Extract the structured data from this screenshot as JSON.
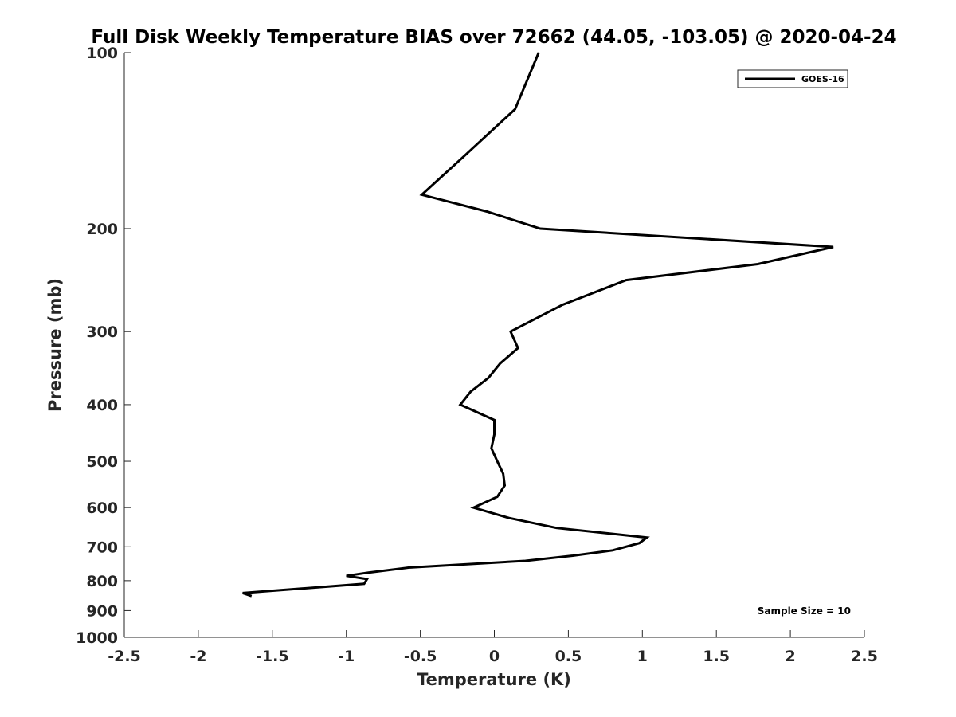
{
  "chart_data": {
    "type": "line",
    "title": "Full Disk Weekly Temperature BIAS over 72662 (44.05, -103.05) @ 2020-04-24",
    "xlabel": "Temperature (K)",
    "ylabel": "Pressure (mb)",
    "xlim": [
      -2.5,
      2.5
    ],
    "ylim": [
      100,
      1000
    ],
    "y_scale": "log",
    "y_reversed": true,
    "grid": false,
    "legend_position": "top-right",
    "x_ticks": [
      "-2.5",
      "-2",
      "-1.5",
      "-1",
      "-0.5",
      "0",
      "0.5",
      "1",
      "1.5",
      "2",
      "2.5"
    ],
    "y_ticks": [
      "100",
      "200",
      "300",
      "400",
      "500",
      "600",
      "700",
      "800",
      "900",
      "1000"
    ],
    "annotation": "Sample Size = 10",
    "series": [
      {
        "name": "GOES-16",
        "color": "#000000",
        "points": [
          {
            "t": 0.3,
            "p": 100
          },
          {
            "t": 0.14,
            "p": 125
          },
          {
            "t": -0.2,
            "p": 150
          },
          {
            "t": -0.49,
            "p": 175
          },
          {
            "t": -0.05,
            "p": 187
          },
          {
            "t": 0.31,
            "p": 200
          },
          {
            "t": 2.29,
            "p": 215
          },
          {
            "t": 1.78,
            "p": 230
          },
          {
            "t": 0.89,
            "p": 245
          },
          {
            "t": 0.46,
            "p": 270
          },
          {
            "t": 0.11,
            "p": 300
          },
          {
            "t": 0.16,
            "p": 320
          },
          {
            "t": 0.04,
            "p": 340
          },
          {
            "t": -0.04,
            "p": 360
          },
          {
            "t": -0.16,
            "p": 380
          },
          {
            "t": -0.23,
            "p": 400
          },
          {
            "t": 0.0,
            "p": 425
          },
          {
            "t": 0.0,
            "p": 450
          },
          {
            "t": -0.02,
            "p": 475
          },
          {
            "t": 0.02,
            "p": 500
          },
          {
            "t": 0.06,
            "p": 525
          },
          {
            "t": 0.07,
            "p": 550
          },
          {
            "t": 0.02,
            "p": 575
          },
          {
            "t": -0.14,
            "p": 600
          },
          {
            "t": 0.1,
            "p": 625
          },
          {
            "t": 0.42,
            "p": 650
          },
          {
            "t": 1.03,
            "p": 675
          },
          {
            "t": 0.98,
            "p": 690
          },
          {
            "t": 0.8,
            "p": 710
          },
          {
            "t": 0.53,
            "p": 725
          },
          {
            "t": 0.21,
            "p": 740
          },
          {
            "t": -0.58,
            "p": 760
          },
          {
            "t": -0.85,
            "p": 775
          },
          {
            "t": -1.0,
            "p": 785
          },
          {
            "t": -0.86,
            "p": 795
          },
          {
            "t": -0.88,
            "p": 810
          },
          {
            "t": -1.7,
            "p": 840
          },
          {
            "t": -1.64,
            "p": 850
          }
        ]
      }
    ]
  }
}
